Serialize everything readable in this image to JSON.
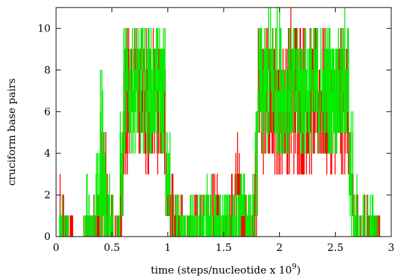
{
  "chart_data": {
    "type": "line",
    "title": "",
    "xlabel": "time (steps/nucleotide x 10",
    "xlabel_superscript": "9",
    "xlabel_suffix": ")",
    "ylabel": "cruciform base pairs",
    "xlim": [
      0,
      3
    ],
    "ylim": [
      0,
      11
    ],
    "xticks": [
      0,
      0.5,
      1,
      1.5,
      2,
      2.5,
      3
    ],
    "xtick_labels": [
      "0",
      "0.5",
      "1",
      "1.5",
      "2",
      "2.5",
      "3"
    ],
    "yticks": [
      0,
      2,
      4,
      6,
      8,
      10
    ],
    "ytick_labels": [
      "0",
      "2",
      "4",
      "6",
      "8",
      "10"
    ],
    "grid": false,
    "legend": "none",
    "series": [
      {
        "color": "#ff0000",
        "style": "step",
        "envelope": [
          [
            0.0,
            0,
            0
          ],
          [
            0.03,
            0,
            3
          ],
          [
            0.06,
            0,
            3
          ],
          [
            0.09,
            0,
            1
          ],
          [
            0.12,
            0,
            1
          ],
          [
            0.15,
            0,
            0
          ],
          [
            0.18,
            0,
            0
          ],
          [
            0.21,
            0,
            0
          ],
          [
            0.24,
            0,
            1
          ],
          [
            0.27,
            0,
            2
          ],
          [
            0.3,
            0,
            1
          ],
          [
            0.33,
            0,
            2
          ],
          [
            0.36,
            0,
            3
          ],
          [
            0.39,
            0,
            5
          ],
          [
            0.42,
            0,
            6
          ],
          [
            0.45,
            0,
            3
          ],
          [
            0.48,
            0,
            2
          ],
          [
            0.51,
            0,
            1
          ],
          [
            0.54,
            0,
            1
          ],
          [
            0.57,
            0,
            5
          ],
          [
            0.6,
            3,
            10
          ],
          [
            0.66,
            4,
            10
          ],
          [
            0.72,
            4,
            10
          ],
          [
            0.78,
            3,
            10
          ],
          [
            0.84,
            4,
            10
          ],
          [
            0.9,
            3,
            10
          ],
          [
            0.95,
            3,
            10
          ],
          [
            0.98,
            0,
            4
          ],
          [
            1.02,
            0,
            3
          ],
          [
            1.06,
            0,
            2
          ],
          [
            1.1,
            0,
            2
          ],
          [
            1.15,
            0,
            1
          ],
          [
            1.2,
            0,
            3
          ],
          [
            1.25,
            0,
            2
          ],
          [
            1.3,
            0,
            2
          ],
          [
            1.35,
            0,
            2
          ],
          [
            1.4,
            0,
            3
          ],
          [
            1.45,
            0,
            2
          ],
          [
            1.5,
            0,
            1
          ],
          [
            1.55,
            0,
            3
          ],
          [
            1.6,
            0,
            5
          ],
          [
            1.65,
            0,
            3
          ],
          [
            1.7,
            0,
            2
          ],
          [
            1.75,
            0,
            3
          ],
          [
            1.78,
            0,
            5
          ],
          [
            1.8,
            3,
            10
          ],
          [
            1.9,
            3,
            10
          ],
          [
            2.0,
            3,
            10
          ],
          [
            2.1,
            3,
            11
          ],
          [
            2.2,
            3,
            10
          ],
          [
            2.3,
            3,
            10
          ],
          [
            2.4,
            3,
            10
          ],
          [
            2.5,
            3,
            10
          ],
          [
            2.58,
            3,
            10
          ],
          [
            2.62,
            0,
            5
          ],
          [
            2.66,
            0,
            3
          ],
          [
            2.7,
            0,
            1
          ],
          [
            2.75,
            0,
            2
          ],
          [
            2.8,
            0,
            1
          ],
          [
            2.85,
            0,
            1
          ],
          [
            2.9,
            0,
            0
          ],
          [
            3.0,
            0,
            0
          ]
        ]
      },
      {
        "color": "#00ee00",
        "style": "step",
        "envelope": [
          [
            0.0,
            0,
            0
          ],
          [
            0.03,
            0,
            2
          ],
          [
            0.06,
            0,
            1
          ],
          [
            0.09,
            0,
            1
          ],
          [
            0.12,
            0,
            0
          ],
          [
            0.15,
            0,
            0
          ],
          [
            0.18,
            0,
            0
          ],
          [
            0.21,
            0,
            0
          ],
          [
            0.24,
            0,
            1
          ],
          [
            0.27,
            0,
            3
          ],
          [
            0.3,
            0,
            2
          ],
          [
            0.33,
            0,
            3
          ],
          [
            0.36,
            0,
            4
          ],
          [
            0.39,
            0,
            9
          ],
          [
            0.42,
            0,
            5
          ],
          [
            0.45,
            0,
            3
          ],
          [
            0.48,
            0,
            2
          ],
          [
            0.51,
            0,
            1
          ],
          [
            0.54,
            0,
            2
          ],
          [
            0.57,
            0,
            6
          ],
          [
            0.6,
            4,
            10
          ],
          [
            0.66,
            4,
            10
          ],
          [
            0.72,
            4,
            10
          ],
          [
            0.78,
            4,
            10
          ],
          [
            0.84,
            4,
            10
          ],
          [
            0.9,
            4,
            10
          ],
          [
            0.95,
            4,
            10
          ],
          [
            0.98,
            0,
            5
          ],
          [
            1.02,
            0,
            3
          ],
          [
            1.06,
            0,
            2
          ],
          [
            1.1,
            0,
            2
          ],
          [
            1.15,
            0,
            1
          ],
          [
            1.2,
            0,
            2
          ],
          [
            1.25,
            0,
            2
          ],
          [
            1.3,
            0,
            2
          ],
          [
            1.35,
            0,
            3
          ],
          [
            1.4,
            0,
            2
          ],
          [
            1.45,
            0,
            2
          ],
          [
            1.5,
            0,
            2
          ],
          [
            1.55,
            0,
            2
          ],
          [
            1.6,
            0,
            3
          ],
          [
            1.65,
            0,
            4
          ],
          [
            1.7,
            0,
            2
          ],
          [
            1.75,
            0,
            3
          ],
          [
            1.78,
            0,
            6
          ],
          [
            1.8,
            4,
            10
          ],
          [
            1.9,
            4,
            11
          ],
          [
            2.0,
            4,
            10
          ],
          [
            2.1,
            4,
            10
          ],
          [
            2.2,
            4,
            10
          ],
          [
            2.3,
            4,
            10
          ],
          [
            2.4,
            4,
            10
          ],
          [
            2.5,
            4,
            10
          ],
          [
            2.58,
            4,
            11
          ],
          [
            2.62,
            0,
            6
          ],
          [
            2.66,
            0,
            3
          ],
          [
            2.7,
            0,
            2
          ],
          [
            2.75,
            0,
            2
          ],
          [
            2.8,
            0,
            2
          ],
          [
            2.85,
            0,
            1
          ],
          [
            2.9,
            0,
            0
          ],
          [
            3.0,
            0,
            0
          ]
        ]
      }
    ]
  }
}
